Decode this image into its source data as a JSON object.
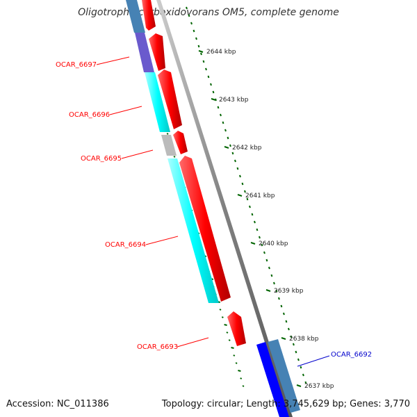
{
  "title": "Oligotropha carboxidovorans OM5, complete genome",
  "footer": {
    "accession": "Accession: NC_011386",
    "summary": "Topology: circular; Length: 3,745,629 bp; Genes: 3,770"
  },
  "colors": {
    "forward_cds": "#ff0000",
    "reverse_label": "#0000cc",
    "cog_cyan": "#00ffff",
    "cog_purple": "#6a5acd",
    "cog_gray": "#bbbbbb",
    "cog_steel": "#4682b4",
    "cog_blue": "#0000ff",
    "backbone": "#808080",
    "gc_skew": "#006400"
  },
  "ticks": [
    {
      "label": "2644 kbp"
    },
    {
      "label": "2643 kbp"
    },
    {
      "label": "2642 kbp"
    },
    {
      "label": "2641 kbp"
    },
    {
      "label": "2640 kbp"
    },
    {
      "label": "2639 kbp"
    },
    {
      "label": "2638 kbp"
    },
    {
      "label": "2637 kbp"
    }
  ],
  "genes": [
    {
      "label": "OCAR_6697",
      "strand": "+"
    },
    {
      "label": "OCAR_6696",
      "strand": "+"
    },
    {
      "label": "OCAR_6695",
      "strand": "+"
    },
    {
      "label": "OCAR_6694",
      "strand": "+"
    },
    {
      "label": "OCAR_6693",
      "strand": "+"
    },
    {
      "label": "OCAR_6692",
      "strand": "-"
    }
  ]
}
